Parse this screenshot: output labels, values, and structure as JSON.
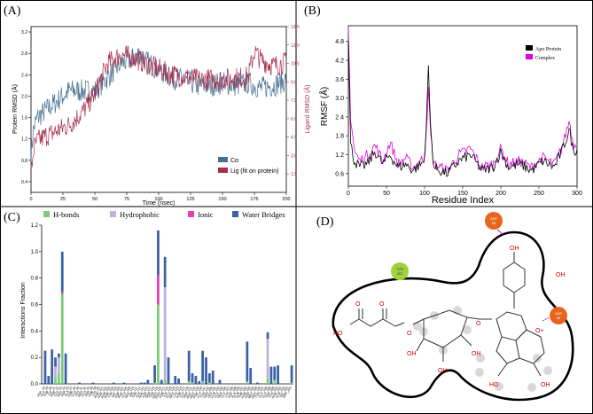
{
  "panel_labels": {
    "a": "(A)",
    "b": "(B)",
    "c": "(C)",
    "d": "(D)"
  },
  "chart_data": [
    {
      "type": "line",
      "title": "",
      "xlabel": "Time (nsec)",
      "ylabel_left": "Protein RMSD (Å)",
      "ylabel_right": "Ligand RMSD (Å)",
      "xlim": [
        0,
        200
      ],
      "ylim_left": [
        0.2,
        3.3
      ],
      "ylim_right": [
        0,
        13.5
      ],
      "x_ticks": [
        0,
        25,
        50,
        75,
        100,
        125,
        150,
        175,
        200
      ],
      "y_ticks_left": [
        0.4,
        0.8,
        1.2,
        1.6,
        2.0,
        2.4,
        2.8,
        3.2
      ],
      "y_ticks_right": [
        1.5,
        3.0,
        4.5,
        6.0,
        7.5,
        9.0,
        10.5,
        12.0,
        13.5
      ],
      "legend": [
        "Cα",
        "Lig (fit on protein)"
      ],
      "legend_position": "bottom-right",
      "series": [
        {
          "name": "Cα",
          "axis": "left",
          "color": "#4a7191",
          "x": [
            0,
            2,
            5,
            10,
            20,
            30,
            40,
            50,
            60,
            70,
            80,
            85,
            90,
            100,
            110,
            120,
            130,
            140,
            150,
            160,
            170,
            180,
            190,
            200
          ],
          "y": [
            0.9,
            1.4,
            1.6,
            1.7,
            1.9,
            2.1,
            2.1,
            2.1,
            2.35,
            2.6,
            2.7,
            2.8,
            2.65,
            2.5,
            2.35,
            2.3,
            2.2,
            2.2,
            2.25,
            2.2,
            2.25,
            2.15,
            2.2,
            2.3
          ]
        },
        {
          "name": "Lig (fit on protein)",
          "axis": "right",
          "color": "#a8304f",
          "x": [
            0,
            2,
            5,
            10,
            20,
            30,
            40,
            50,
            60,
            70,
            80,
            90,
            100,
            110,
            120,
            130,
            140,
            150,
            160,
            170,
            175,
            180,
            190,
            200
          ],
          "y": [
            1.5,
            3.5,
            4.2,
            4.5,
            5.0,
            5.5,
            6.5,
            8.0,
            10.5,
            11.2,
            11.0,
            10.5,
            10.0,
            9.6,
            9.4,
            9.2,
            9.2,
            9.2,
            9.3,
            9.4,
            11.5,
            10.8,
            10.3,
            10.6
          ]
        }
      ]
    },
    {
      "type": "line",
      "title": "",
      "xlabel": "Residue Index",
      "ylabel": "RMSF (Å)",
      "xlim": [
        0,
        300
      ],
      "ylim": [
        0.2,
        5.3
      ],
      "x_ticks": [
        0,
        50,
        100,
        150,
        200,
        250,
        300
      ],
      "y_ticks": [
        0.6,
        1.2,
        1.8,
        2.4,
        3.0,
        3.6,
        4.2,
        4.8
      ],
      "legend": [
        "Apo Protein",
        "Complex"
      ],
      "legend_position": "top-right",
      "series": [
        {
          "name": "Apo Protein",
          "color": "#000000",
          "x": [
            0,
            3,
            8,
            15,
            25,
            35,
            45,
            55,
            65,
            75,
            85,
            95,
            100,
            105,
            108,
            112,
            120,
            130,
            145,
            160,
            175,
            190,
            200,
            210,
            225,
            240,
            255,
            270,
            280,
            290,
            295,
            300
          ],
          "y": [
            4.9,
            1.5,
            1.0,
            0.8,
            0.9,
            1.3,
            0.9,
            1.2,
            0.8,
            0.9,
            0.7,
            0.9,
            1.0,
            3.9,
            2.0,
            0.8,
            0.7,
            0.6,
            1.0,
            1.2,
            0.7,
            0.8,
            1.3,
            0.8,
            0.9,
            0.7,
            1.0,
            0.8,
            1.3,
            2.0,
            1.3,
            1.4
          ]
        },
        {
          "name": "Complex",
          "color": "#e000e0",
          "x": [
            0,
            3,
            8,
            15,
            25,
            35,
            45,
            55,
            65,
            75,
            85,
            95,
            100,
            105,
            108,
            112,
            120,
            130,
            145,
            160,
            175,
            190,
            200,
            210,
            225,
            240,
            255,
            270,
            280,
            290,
            295,
            300
          ],
          "y": [
            5.2,
            2.4,
            1.3,
            1.0,
            1.2,
            1.5,
            1.0,
            1.6,
            0.9,
            1.1,
            0.8,
            1.0,
            1.1,
            3.2,
            1.8,
            0.9,
            0.8,
            0.7,
            1.2,
            1.4,
            0.8,
            0.9,
            1.4,
            0.9,
            1.0,
            0.8,
            1.1,
            0.9,
            1.4,
            2.3,
            1.5,
            1.6
          ]
        }
      ]
    },
    {
      "type": "bar",
      "stacked": true,
      "title": "",
      "xlabel": "",
      "ylabel": "Interactions Fraction",
      "ylim": [
        0,
        1.2
      ],
      "y_ticks": [
        0.0,
        0.2,
        0.4,
        0.6,
        0.8,
        1.0,
        1.2
      ],
      "legend_position": "top",
      "categories": [
        "ASP_18",
        "GLY_19",
        "THR_20",
        "ILE_21",
        "PHE_22",
        "GLY_23",
        "ARG_24",
        "ASP_25",
        "ALA_27",
        "ASN_28",
        "GLU_30",
        "LEU_31",
        "ARG_32",
        "GLU_33",
        "ASP_39",
        "ASN_59",
        "LYS_60",
        "ASN_101",
        "ASP_102",
        "ASN_103",
        "PHE_104",
        "TYR_105",
        "VAL_106",
        "ASP_107",
        "PHE_108",
        "GLY_109",
        "ARG_110",
        "HIS_111",
        "THR_112",
        "ALA_115",
        "ARG_116",
        "ASP_117",
        "SER_118",
        "THR_119",
        "ARG_120",
        "PRO_121",
        "ASN_122",
        "ILE_123",
        "GLU_124",
        "ARG_125",
        "LYS_126",
        "ASN_127",
        "GLY_130",
        "SER_131",
        "ARG_132",
        "ARG_138",
        "PHE_140",
        "GLY_141",
        "TYR_142",
        "SER_180",
        "LEU_182",
        "GLN_184",
        "GLY_185",
        "SER_186",
        "GLY_187",
        "LYS_188",
        "ASP_189",
        "ALA_190",
        "GLN_191",
        "THR_192",
        "ASN_193",
        "ASP_194",
        "MET_195",
        "ARG_196",
        "TYR_197",
        "GLY_198",
        "GLY_199",
        "TRP_200",
        "TYR_202",
        "PHE_203",
        "GLN_204",
        "VAL_205",
        "SER_206"
      ],
      "series": [
        {
          "name": "H-bonds",
          "color": "#7ec97a",
          "values": [
            0.0,
            0.0,
            0.0,
            0.05,
            0.08,
            0.68,
            0.0,
            0.0,
            0.0,
            0.0,
            0.0,
            0.0,
            0.0,
            0.0,
            0.0,
            0.0,
            0.0,
            0.0,
            0.0,
            0.0,
            0.0,
            0.0,
            0.0,
            0.0,
            0.0,
            0.0,
            0.0,
            0.0,
            0.0,
            0.0,
            0.0,
            0.0,
            0.01,
            0.6,
            0.0,
            0.03,
            0.0,
            0.0,
            0.0,
            0.0,
            0.0,
            0.0,
            0.02,
            0.01,
            0.0,
            0.0,
            0.02,
            0.0,
            0.01,
            0.0,
            0.0,
            0.0,
            0.0,
            0.0,
            0.0,
            0.0,
            0.0,
            0.0,
            0.0,
            0.02,
            0.0,
            0.0,
            0.0,
            0.0,
            0.0,
            0.04,
            0.0,
            0.03,
            0.0,
            0.0,
            0.0,
            0.0,
            0.01
          ]
        },
        {
          "name": "Hydrophobic",
          "color": "#c1b0db",
          "values": [
            0.0,
            0.0,
            0.0,
            0.08,
            0.12,
            0.0,
            0.0,
            0.0,
            0.0,
            0.0,
            0.0,
            0.0,
            0.0,
            0.0,
            0.0,
            0.0,
            0.0,
            0.0,
            0.0,
            0.0,
            0.0,
            0.0,
            0.0,
            0.0,
            0.0,
            0.0,
            0.0,
            0.0,
            0.0,
            0.0,
            0.0,
            0.0,
            0.0,
            0.0,
            0.0,
            0.7,
            0.0,
            0.0,
            0.0,
            0.0,
            0.0,
            0.0,
            0.0,
            0.0,
            0.0,
            0.0,
            0.0,
            0.0,
            0.0,
            0.0,
            0.0,
            0.0,
            0.0,
            0.0,
            0.0,
            0.0,
            0.0,
            0.0,
            0.0,
            0.0,
            0.0,
            0.0,
            0.0,
            0.0,
            0.0,
            0.3,
            0.0,
            0.0,
            0.0,
            0.0,
            0.0,
            0.0,
            0.0
          ]
        },
        {
          "name": "Ionic",
          "color": "#e040b0",
          "values": [
            0.0,
            0.0,
            0.0,
            0.0,
            0.0,
            0.02,
            0.0,
            0.0,
            0.0,
            0.0,
            0.0,
            0.0,
            0.0,
            0.0,
            0.0,
            0.0,
            0.0,
            0.0,
            0.0,
            0.0,
            0.0,
            0.0,
            0.0,
            0.0,
            0.0,
            0.0,
            0.0,
            0.0,
            0.0,
            0.0,
            0.0,
            0.0,
            0.0,
            0.22,
            0.0,
            0.0,
            0.0,
            0.0,
            0.0,
            0.0,
            0.0,
            0.0,
            0.0,
            0.0,
            0.0,
            0.0,
            0.0,
            0.0,
            0.0,
            0.0,
            0.0,
            0.0,
            0.0,
            0.0,
            0.0,
            0.0,
            0.0,
            0.0,
            0.0,
            0.0,
            0.0,
            0.0,
            0.0,
            0.0,
            0.0,
            0.0,
            0.0,
            0.0,
            0.0,
            0.0,
            0.0,
            0.0,
            0.0
          ]
        },
        {
          "name": "Water Bridges",
          "color": "#3b62a6",
          "values": [
            0.25,
            0.06,
            0.26,
            0.07,
            0.03,
            0.3,
            0.23,
            0.0,
            0.0,
            0.0,
            0.01,
            0.0,
            0.0,
            0.0,
            0.01,
            0.0,
            0.0,
            0.0,
            0.0,
            0.0,
            0.01,
            0.0,
            0.0,
            0.01,
            0.0,
            0.0,
            0.0,
            0.0,
            0.01,
            0.01,
            0.03,
            0.0,
            0.13,
            0.34,
            0.03,
            0.23,
            0.2,
            0.0,
            0.06,
            0.04,
            0.0,
            0.0,
            0.23,
            0.07,
            0.06,
            0.02,
            0.23,
            0.2,
            0.07,
            0.1,
            0.0,
            0.03,
            0.0,
            0.0,
            0.0,
            0.0,
            0.0,
            0.0,
            0.0,
            0.3,
            0.12,
            0.0,
            0.01,
            0.0,
            0.0,
            0.05,
            0.13,
            0.1,
            0.14,
            0.0,
            0.0,
            0.0,
            0.13
          ]
        }
      ]
    }
  ],
  "diagram": {
    "residues": [
      {
        "name": "ASP",
        "number": "59",
        "color": "#e8641f"
      },
      {
        "name": "TYR",
        "number": "202",
        "color": "#9fd13d"
      },
      {
        "name": "ASP",
        "number": "60",
        "color": "#e8641f"
      }
    ],
    "atom_labels": {
      "oh": "OH",
      "ho": "HO",
      "o": "O",
      "o_plus": "O+"
    }
  }
}
